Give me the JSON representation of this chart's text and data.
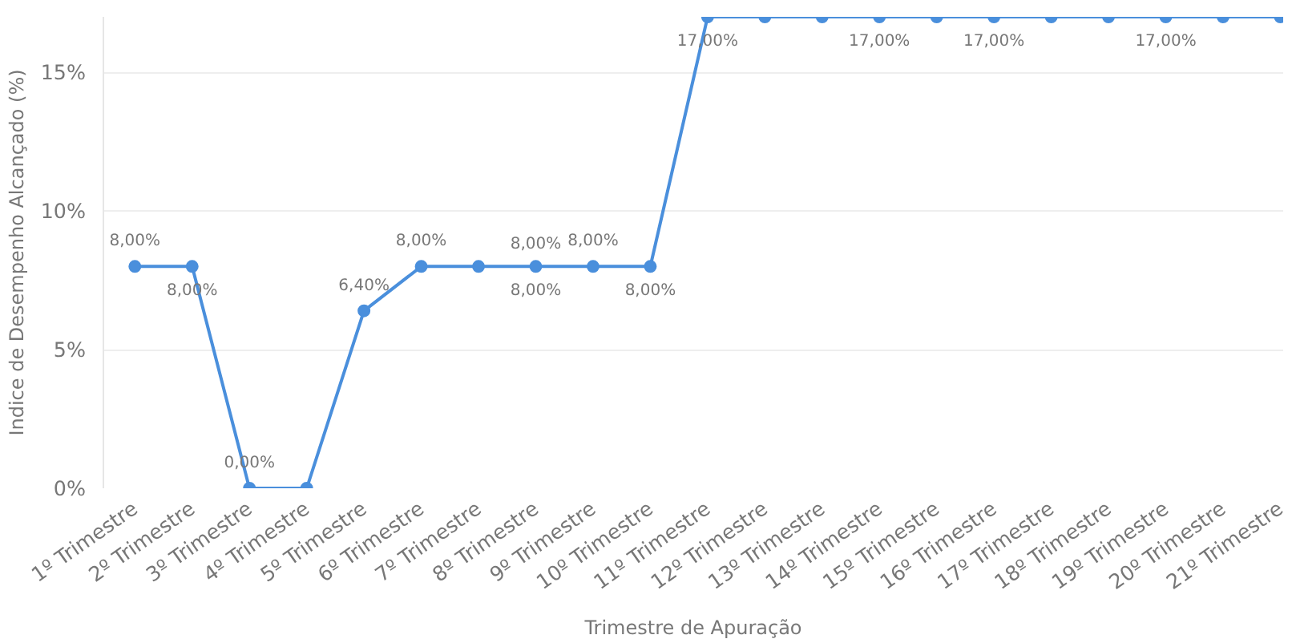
{
  "chart_data": {
    "type": "line",
    "xlabel": "Trimestre de Apuração",
    "ylabel": "Indice de Desempenho Alcançado (%)",
    "categories": [
      "1º Trimestre",
      "2º Trimestre",
      "3º Trimestre",
      "4º Trimestre",
      "5º Trimestre",
      "6º Trimestre",
      "7º Trimestre",
      "8º Trimestre",
      "9º Trimestre",
      "10º Trimestre",
      "11º Trimestre",
      "12º Trimestre",
      "13º Trimestre",
      "14º Trimestre",
      "15º Trimestre",
      "16º Trimestre",
      "17º Trimestre",
      "18º Trimestre",
      "19º Trimestre",
      "20º Trimestre",
      "21º Trimestre"
    ],
    "series": [
      {
        "color": "#4a8fdc",
        "values": [
          8,
          8,
          0,
          0,
          6.4,
          8,
          8,
          8,
          8,
          8,
          17,
          17,
          17,
          17,
          17,
          17,
          17,
          17,
          17,
          17,
          17
        ],
        "value_labels": [
          "8,00%",
          "8,00%",
          "0,00%",
          null,
          "6,40%",
          "8,00%",
          null,
          "8,00%",
          "8,00%",
          "8,00%",
          "17,00%",
          null,
          null,
          "17,00%",
          null,
          "17,00%",
          null,
          null,
          "17,00%",
          null,
          null
        ]
      }
    ],
    "annotations": [
      {
        "text": "8,00%",
        "x": "8º Trimestre",
        "y": 8
      }
    ],
    "ylim": [
      0,
      17
    ],
    "yticks": [
      {
        "value": 0,
        "label": "0%"
      },
      {
        "value": 5,
        "label": "5%"
      },
      {
        "value": 10,
        "label": "10%"
      },
      {
        "value": 15,
        "label": "15%"
      }
    ],
    "grid": "y",
    "marker": "circle",
    "line_style": "solid"
  }
}
